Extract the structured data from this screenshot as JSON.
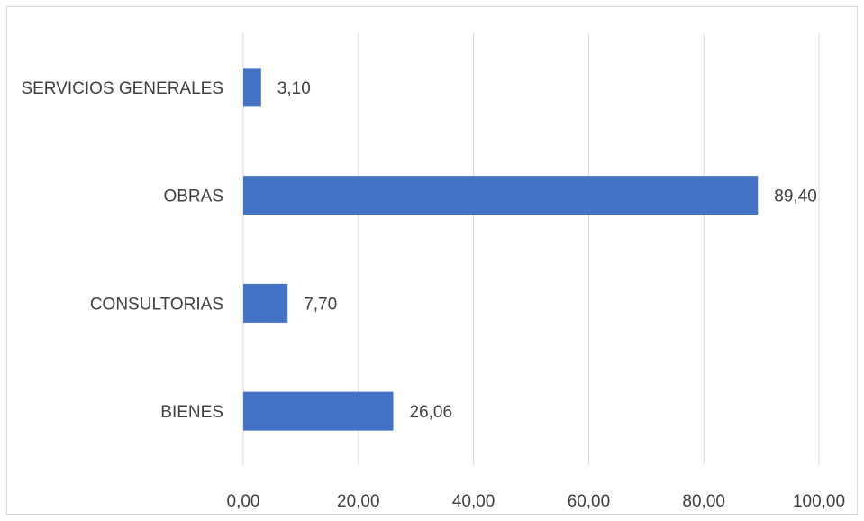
{
  "chart_data": {
    "type": "bar",
    "orientation": "horizontal",
    "title": "",
    "xlabel": "",
    "ylabel": "",
    "categories": [
      "SERVICIOS GENERALES",
      "OBRAS",
      "CONSULTORIAS",
      "BIENES"
    ],
    "values": [
      3.1,
      89.4,
      7.7,
      26.06
    ],
    "value_labels": [
      "3,10",
      "89,40",
      "7,70",
      "26,06"
    ],
    "xlim": [
      0,
      100
    ],
    "x_ticks": [
      0,
      20,
      40,
      60,
      80,
      100
    ],
    "x_tick_labels": [
      "0,00",
      "20,00",
      "40,00",
      "60,00",
      "80,00",
      "100,00"
    ],
    "grid": true,
    "legend": "none",
    "colors": {
      "bar": "#4472C4",
      "grid": "#d9d9d9",
      "text": "#404040",
      "border": "#d9d9d9"
    }
  }
}
